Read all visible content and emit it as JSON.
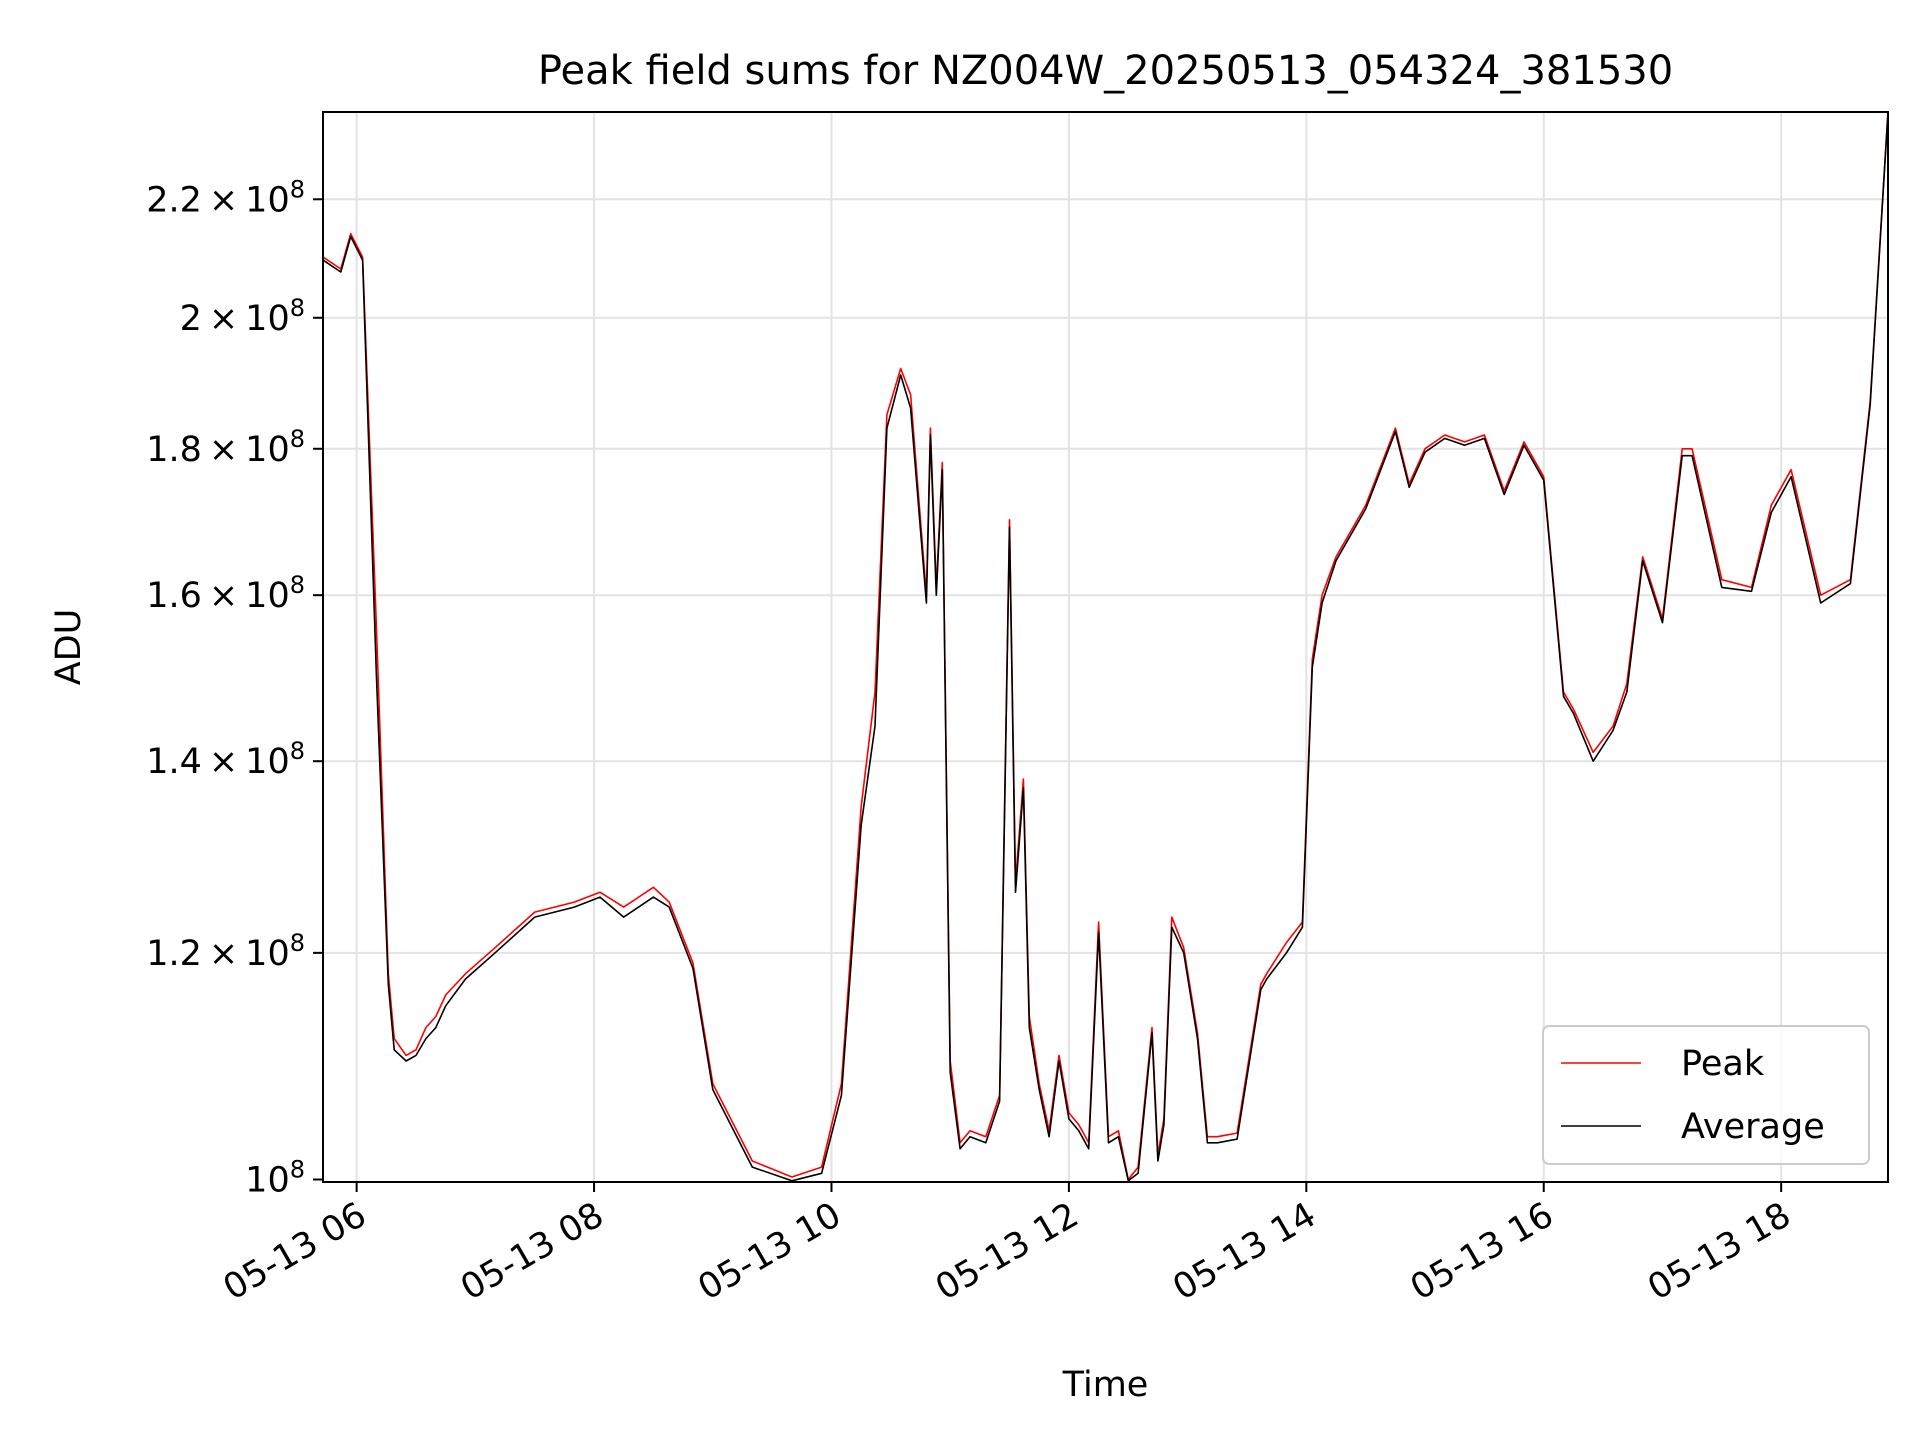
{
  "chart_data": {
    "type": "line",
    "title": "Peak field sums for NZ004W_20250513_054324_381530",
    "xlabel": "Time",
    "ylabel": "ADU",
    "yscale": "log",
    "xlim": [
      "2025-05-13 05:43",
      "2025-05-13 18:54"
    ],
    "ylim": [
      99800000,
      236000000
    ],
    "grid": true,
    "legend_position": "lower-right",
    "x_ticks": [
      {
        "time": "2025-05-13 06:00",
        "label": "05-13 06"
      },
      {
        "time": "2025-05-13 08:00",
        "label": "05-13 08"
      },
      {
        "time": "2025-05-13 10:00",
        "label": "05-13 10"
      },
      {
        "time": "2025-05-13 12:00",
        "label": "05-13 12"
      },
      {
        "time": "2025-05-13 14:00",
        "label": "05-13 14"
      },
      {
        "time": "2025-05-13 16:00",
        "label": "05-13 16"
      },
      {
        "time": "2025-05-13 18:00",
        "label": "05-13 18"
      }
    ],
    "y_ticks": [
      {
        "value": 100000000,
        "mant": "",
        "exp": "8"
      },
      {
        "value": 120000000,
        "mant": "1.2",
        "exp": "8"
      },
      {
        "value": 140000000,
        "mant": "1.4",
        "exp": "8"
      },
      {
        "value": 160000000,
        "mant": "1.6",
        "exp": "8"
      },
      {
        "value": 180000000,
        "mant": "1.8",
        "exp": "8"
      },
      {
        "value": 200000000,
        "mant": "2",
        "exp": "8"
      },
      {
        "value": 220000000,
        "mant": "2.2",
        "exp": "8"
      }
    ],
    "series": [
      {
        "name": "Peak",
        "color": "#ff0000",
        "x": [
          "2025-05-13 05:43",
          "2025-05-13 05:52",
          "2025-05-13 05:57",
          "2025-05-13 06:03",
          "2025-05-13 06:10",
          "2025-05-13 06:16",
          "2025-05-13 06:19",
          "2025-05-13 06:25",
          "2025-05-13 06:30",
          "2025-05-13 06:35",
          "2025-05-13 06:40",
          "2025-05-13 06:45",
          "2025-05-13 06:55",
          "2025-05-13 07:10",
          "2025-05-13 07:30",
          "2025-05-13 07:50",
          "2025-05-13 08:03",
          "2025-05-13 08:15",
          "2025-05-13 08:30",
          "2025-05-13 08:38",
          "2025-05-13 08:50",
          "2025-05-13 09:00",
          "2025-05-13 09:20",
          "2025-05-13 09:40",
          "2025-05-13 09:55",
          "2025-05-13 10:05",
          "2025-05-13 10:15",
          "2025-05-13 10:22",
          "2025-05-13 10:28",
          "2025-05-13 10:35",
          "2025-05-13 10:40",
          "2025-05-13 10:48",
          "2025-05-13 10:50",
          "2025-05-13 10:53",
          "2025-05-13 10:56",
          "2025-05-13 10:58",
          "2025-05-13 11:00",
          "2025-05-13 11:05",
          "2025-05-13 11:10",
          "2025-05-13 11:18",
          "2025-05-13 11:25",
          "2025-05-13 11:30",
          "2025-05-13 11:33",
          "2025-05-13 11:37",
          "2025-05-13 11:40",
          "2025-05-13 11:45",
          "2025-05-13 11:50",
          "2025-05-13 11:55",
          "2025-05-13 12:00",
          "2025-05-13 12:05",
          "2025-05-13 12:10",
          "2025-05-13 12:15",
          "2025-05-13 12:20",
          "2025-05-13 12:25",
          "2025-05-13 12:30",
          "2025-05-13 12:35",
          "2025-05-13 12:42",
          "2025-05-13 12:45",
          "2025-05-13 12:48",
          "2025-05-13 12:52",
          "2025-05-13 12:58",
          "2025-05-13 13:05",
          "2025-05-13 13:10",
          "2025-05-13 13:15",
          "2025-05-13 13:25",
          "2025-05-13 13:37",
          "2025-05-13 13:40",
          "2025-05-13 13:50",
          "2025-05-13 13:58",
          "2025-05-13 14:03",
          "2025-05-13 14:08",
          "2025-05-13 14:15",
          "2025-05-13 14:30",
          "2025-05-13 14:45",
          "2025-05-13 14:52",
          "2025-05-13 15:00",
          "2025-05-13 15:10",
          "2025-05-13 15:20",
          "2025-05-13 15:30",
          "2025-05-13 15:40",
          "2025-05-13 15:50",
          "2025-05-13 16:00",
          "2025-05-13 16:10",
          "2025-05-13 16:15",
          "2025-05-13 16:25",
          "2025-05-13 16:35",
          "2025-05-13 16:42",
          "2025-05-13 16:50",
          "2025-05-13 17:00",
          "2025-05-13 17:10",
          "2025-05-13 17:15",
          "2025-05-13 17:30",
          "2025-05-13 17:45",
          "2025-05-13 17:55",
          "2025-05-13 18:05",
          "2025-05-13 18:20",
          "2025-05-13 18:35",
          "2025-05-13 18:45",
          "2025-05-13 18:54"
        ],
        "y": [
          210000000,
          208000000,
          214000000,
          210000000,
          156000000,
          118000000,
          112000000,
          110500000,
          111000000,
          113000000,
          114000000,
          116000000,
          118000000,
          120500000,
          124000000,
          125000000,
          126000000,
          124500000,
          126500000,
          125000000,
          119000000,
          108000000,
          101500000,
          100200000,
          101000000,
          108000000,
          135000000,
          148000000,
          185000000,
          192000000,
          188000000,
          160000000,
          183000000,
          161000000,
          178000000,
          140000000,
          110000000,
          103000000,
          104000000,
          103500000,
          107000000,
          170000000,
          127000000,
          138000000,
          114000000,
          108000000,
          104000000,
          110500000,
          105500000,
          104500000,
          103000000,
          123000000,
          103500000,
          104000000,
          100000000,
          101000000,
          113000000,
          102000000,
          105000000,
          123500000,
          120500000,
          112500000,
          103500000,
          103500000,
          103800000,
          117000000,
          118000000,
          121000000,
          123000000,
          152000000,
          160000000,
          165000000,
          172000000,
          183000000,
          175000000,
          180000000,
          182000000,
          181000000,
          182000000,
          174000000,
          181000000,
          176000000,
          148000000,
          146000000,
          141000000,
          144000000,
          149000000,
          165000000,
          157000000,
          180000000,
          180000000,
          162000000,
          161000000,
          172000000,
          177000000,
          160000000,
          162000000,
          187000000,
          236000000
        ]
      },
      {
        "name": "Average",
        "color": "#000000",
        "x": [
          "2025-05-13 05:43",
          "2025-05-13 05:52",
          "2025-05-13 05:57",
          "2025-05-13 06:03",
          "2025-05-13 06:10",
          "2025-05-13 06:16",
          "2025-05-13 06:19",
          "2025-05-13 06:25",
          "2025-05-13 06:30",
          "2025-05-13 06:35",
          "2025-05-13 06:40",
          "2025-05-13 06:45",
          "2025-05-13 06:55",
          "2025-05-13 07:10",
          "2025-05-13 07:30",
          "2025-05-13 07:50",
          "2025-05-13 08:03",
          "2025-05-13 08:15",
          "2025-05-13 08:30",
          "2025-05-13 08:38",
          "2025-05-13 08:50",
          "2025-05-13 09:00",
          "2025-05-13 09:20",
          "2025-05-13 09:40",
          "2025-05-13 09:55",
          "2025-05-13 10:05",
          "2025-05-13 10:15",
          "2025-05-13 10:22",
          "2025-05-13 10:28",
          "2025-05-13 10:35",
          "2025-05-13 10:40",
          "2025-05-13 10:48",
          "2025-05-13 10:50",
          "2025-05-13 10:53",
          "2025-05-13 10:56",
          "2025-05-13 10:58",
          "2025-05-13 11:00",
          "2025-05-13 11:05",
          "2025-05-13 11:10",
          "2025-05-13 11:18",
          "2025-05-13 11:25",
          "2025-05-13 11:30",
          "2025-05-13 11:33",
          "2025-05-13 11:37",
          "2025-05-13 11:40",
          "2025-05-13 11:45",
          "2025-05-13 11:50",
          "2025-05-13 11:55",
          "2025-05-13 12:00",
          "2025-05-13 12:05",
          "2025-05-13 12:10",
          "2025-05-13 12:15",
          "2025-05-13 12:20",
          "2025-05-13 12:25",
          "2025-05-13 12:30",
          "2025-05-13 12:35",
          "2025-05-13 12:42",
          "2025-05-13 12:45",
          "2025-05-13 12:48",
          "2025-05-13 12:52",
          "2025-05-13 12:58",
          "2025-05-13 13:05",
          "2025-05-13 13:10",
          "2025-05-13 13:15",
          "2025-05-13 13:25",
          "2025-05-13 13:37",
          "2025-05-13 13:40",
          "2025-05-13 13:50",
          "2025-05-13 13:58",
          "2025-05-13 14:03",
          "2025-05-13 14:08",
          "2025-05-13 14:15",
          "2025-05-13 14:30",
          "2025-05-13 14:45",
          "2025-05-13 14:52",
          "2025-05-13 15:00",
          "2025-05-13 15:10",
          "2025-05-13 15:20",
          "2025-05-13 15:30",
          "2025-05-13 15:40",
          "2025-05-13 15:50",
          "2025-05-13 16:00",
          "2025-05-13 16:10",
          "2025-05-13 16:15",
          "2025-05-13 16:25",
          "2025-05-13 16:35",
          "2025-05-13 16:42",
          "2025-05-13 16:50",
          "2025-05-13 17:00",
          "2025-05-13 17:10",
          "2025-05-13 17:15",
          "2025-05-13 17:30",
          "2025-05-13 17:45",
          "2025-05-13 17:55",
          "2025-05-13 18:05",
          "2025-05-13 18:20",
          "2025-05-13 18:35",
          "2025-05-13 18:45",
          "2025-05-13 18:54"
        ],
        "y": [
          209500000,
          207500000,
          213500000,
          209500000,
          150000000,
          117000000,
          111000000,
          110000000,
          110500000,
          112000000,
          113000000,
          115000000,
          117500000,
          120000000,
          123500000,
          124500000,
          125500000,
          123500000,
          125500000,
          124500000,
          118500000,
          107500000,
          101000000,
          99900000,
          100500000,
          107000000,
          133000000,
          144000000,
          183000000,
          191000000,
          186000000,
          159000000,
          182000000,
          160000000,
          177000000,
          139000000,
          109000000,
          102500000,
          103500000,
          103000000,
          106500000,
          169000000,
          126000000,
          137000000,
          113000000,
          107500000,
          103500000,
          110000000,
          105000000,
          104000000,
          102500000,
          122000000,
          103000000,
          103500000,
          99900000,
          100500000,
          112500000,
          101500000,
          104500000,
          122500000,
          120000000,
          112000000,
          103000000,
          103000000,
          103300000,
          116500000,
          117500000,
          120000000,
          122500000,
          151000000,
          159000000,
          164500000,
          171500000,
          182500000,
          174500000,
          179500000,
          181500000,
          180500000,
          181500000,
          173500000,
          180500000,
          175500000,
          147500000,
          145500000,
          140000000,
          143500000,
          148000000,
          164500000,
          156500000,
          179000000,
          179000000,
          161000000,
          160500000,
          171000000,
          176000000,
          159000000,
          161500000,
          186500000,
          236000000
        ]
      }
    ]
  }
}
